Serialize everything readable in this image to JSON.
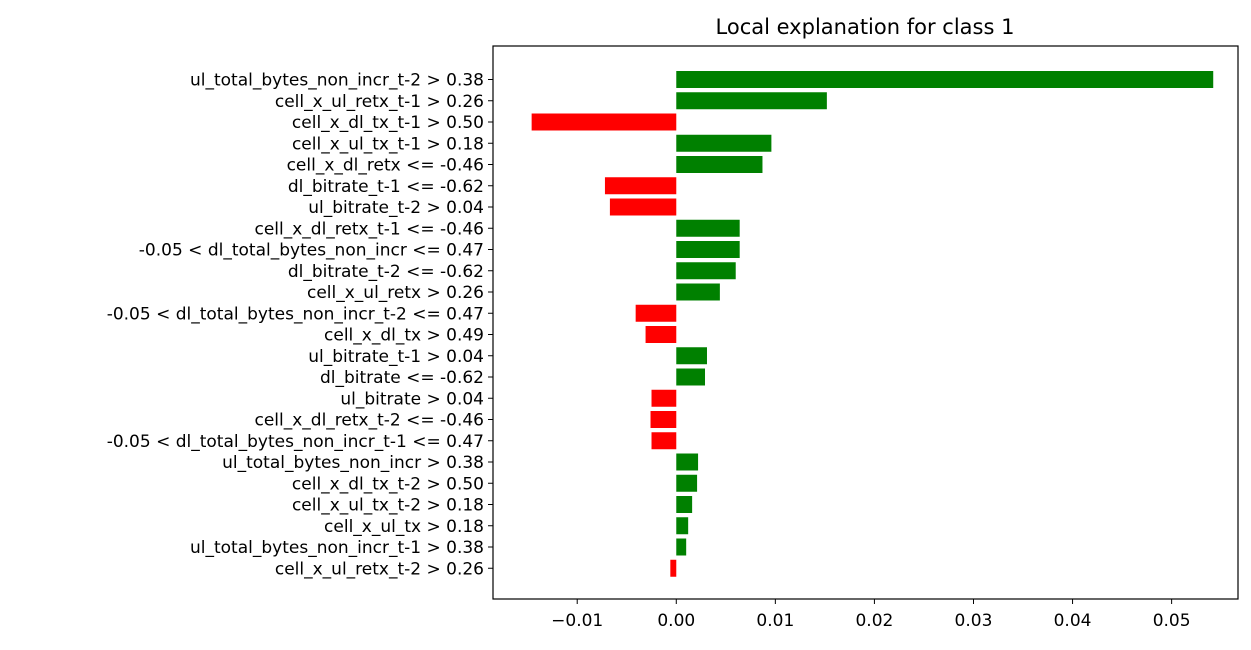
{
  "chart_data": {
    "type": "bar",
    "orientation": "horizontal",
    "title": "Local explanation for class 1",
    "xlabel": "",
    "ylabel": "",
    "xlim": [
      -0.0185,
      0.0567
    ],
    "xticks": [
      -0.01,
      0.0,
      0.01,
      0.02,
      0.03,
      0.04,
      0.05
    ],
    "xtick_labels": [
      "−0.01",
      "0.00",
      "0.01",
      "0.02",
      "0.03",
      "0.04",
      "0.05"
    ],
    "grid": false,
    "legend": "none",
    "positive_color": "#008000",
    "negative_color": "#ff0000",
    "categories": [
      "ul_total_bytes_non_incr_t-2 > 0.38",
      "cell_x_ul_retx_t-1 > 0.26",
      "cell_x_dl_tx_t-1 > 0.50",
      "cell_x_ul_tx_t-1 > 0.18",
      "cell_x_dl_retx <= -0.46",
      "dl_bitrate_t-1 <= -0.62",
      "ul_bitrate_t-2 > 0.04",
      "cell_x_dl_retx_t-1 <= -0.46",
      "-0.05 < dl_total_bytes_non_incr <= 0.47",
      "dl_bitrate_t-2 <= -0.62",
      "cell_x_ul_retx > 0.26",
      "-0.05 < dl_total_bytes_non_incr_t-2 <= 0.47",
      "cell_x_dl_tx > 0.49",
      "ul_bitrate_t-1 > 0.04",
      "dl_bitrate <= -0.62",
      "ul_bitrate > 0.04",
      "cell_x_dl_retx_t-2 <= -0.46",
      "-0.05 < dl_total_bytes_non_incr_t-1 <= 0.47",
      "ul_total_bytes_non_incr > 0.38",
      "cell_x_dl_tx_t-2 > 0.50",
      "cell_x_ul_tx_t-2 > 0.18",
      "cell_x_ul_tx > 0.18",
      "ul_total_bytes_non_incr_t-1 > 0.38",
      "cell_x_ul_retx_t-2 > 0.26"
    ],
    "values": [
      0.0542,
      0.0152,
      -0.0146,
      0.0096,
      0.0087,
      -0.0072,
      -0.0067,
      0.0064,
      0.0064,
      0.006,
      0.0044,
      -0.0041,
      -0.0031,
      0.0031,
      0.0029,
      -0.0025,
      -0.0026,
      -0.0025,
      0.0022,
      0.0021,
      0.0016,
      0.0012,
      0.001,
      -0.0006
    ]
  }
}
